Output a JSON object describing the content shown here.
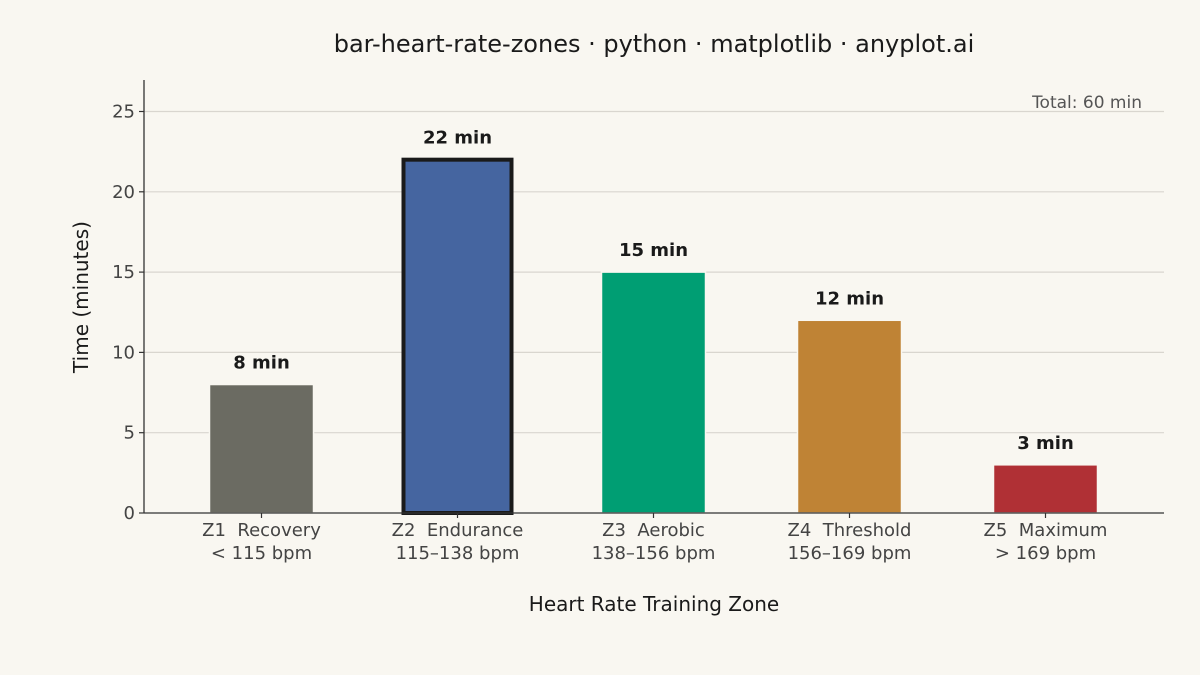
{
  "chart_data": {
    "type": "bar",
    "title": "bar-heart-rate-zones · python · matplotlib · anyplot.ai",
    "xlabel": "Heart Rate Training Zone",
    "ylabel": "Time (minutes)",
    "ylim": [
      0,
      27
    ],
    "yticks": [
      0,
      5,
      10,
      15,
      20,
      25
    ],
    "grid": true,
    "categories": [
      {
        "line1": "Z1  Recovery",
        "line2": "< 115 bpm"
      },
      {
        "line1": "Z2  Endurance",
        "line2": "115–138 bpm"
      },
      {
        "line1": "Z3  Aerobic",
        "line2": "138–156 bpm"
      },
      {
        "line1": "Z4  Threshold",
        "line2": "156–169 bpm"
      },
      {
        "line1": "Z5  Maximum",
        "line2": "> 169 bpm"
      }
    ],
    "values": [
      8,
      22,
      15,
      12,
      3
    ],
    "data_labels": [
      "8 min",
      "22 min",
      "15 min",
      "12 min",
      "3 min"
    ],
    "colors": [
      "#6b6b62",
      "#4565a0",
      "#009e73",
      "#bf8335",
      "#b03035"
    ],
    "highlight_index": 1,
    "highlight_edge_color": "#1a1a1a",
    "annotation": "Total: 60 min"
  }
}
